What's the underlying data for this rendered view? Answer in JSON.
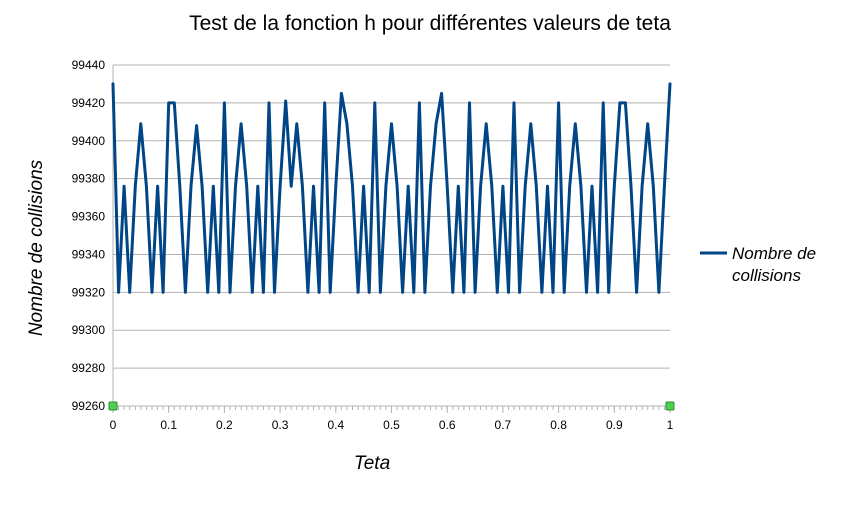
{
  "chart_data": {
    "type": "line",
    "title": "Test de la fonction h pour différentes valeurs de teta",
    "xlabel": "Teta",
    "ylabel": "Nombre de collisions",
    "xlim": [
      0,
      1
    ],
    "ylim": [
      99260,
      99440
    ],
    "x_ticks": [
      "0",
      "0.1",
      "0.2",
      "0.3",
      "0.4",
      "0.5",
      "0.6",
      "0.7",
      "0.8",
      "0.9",
      "1"
    ],
    "y_ticks": [
      "99260",
      "99280",
      "99300",
      "99320",
      "99340",
      "99360",
      "99380",
      "99400",
      "99420",
      "99440"
    ],
    "grid": true,
    "legend_position": "right",
    "colors": {
      "series": "#004586",
      "endpoint_marker": "#4fd04f"
    },
    "series": [
      {
        "name": "Nombre de collisions",
        "x": [
          0,
          0.01,
          0.02,
          0.03,
          0.04,
          0.05,
          0.06,
          0.07,
          0.08,
          0.09,
          0.1,
          0.11,
          0.12,
          0.13,
          0.14,
          0.15,
          0.16,
          0.17,
          0.18,
          0.19,
          0.2,
          0.21,
          0.22,
          0.23,
          0.24,
          0.25,
          0.26,
          0.27,
          0.28,
          0.29,
          0.3,
          0.31,
          0.32,
          0.33,
          0.34,
          0.35,
          0.36,
          0.37,
          0.38,
          0.39,
          0.4,
          0.41,
          0.42,
          0.43,
          0.44,
          0.45,
          0.46,
          0.47,
          0.48,
          0.49,
          0.5,
          0.51,
          0.52,
          0.53,
          0.54,
          0.55,
          0.56,
          0.57,
          0.58,
          0.59,
          0.6,
          0.61,
          0.62,
          0.63,
          0.64,
          0.65,
          0.66,
          0.67,
          0.68,
          0.69,
          0.7,
          0.71,
          0.72,
          0.73,
          0.74,
          0.75,
          0.76,
          0.77,
          0.78,
          0.79,
          0.8,
          0.81,
          0.82,
          0.83,
          0.84,
          0.85,
          0.86,
          0.87,
          0.88,
          0.89,
          0.9,
          0.91,
          0.92,
          0.93,
          0.94,
          0.95,
          0.96,
          0.97,
          0.98,
          0.99,
          1
        ],
        "values": [
          99430,
          99320,
          99376,
          99320,
          99376,
          99409,
          99376,
          99320,
          99376,
          99320,
          99420,
          99420,
          99376,
          99320,
          99376,
          99408,
          99376,
          99320,
          99376,
          99320,
          99420,
          99320,
          99376,
          99409,
          99376,
          99320,
          99376,
          99320,
          99420,
          99320,
          99376,
          99421,
          99376,
          99409,
          99376,
          99320,
          99376,
          99320,
          99420,
          99320,
          99376,
          99425,
          99409,
          99376,
          99320,
          99376,
          99320,
          99420,
          99320,
          99376,
          99409,
          99376,
          99320,
          99376,
          99320,
          99420,
          99320,
          99376,
          99409,
          99425,
          99376,
          99320,
          99376,
          99320,
          99420,
          99320,
          99376,
          99409,
          99376,
          99320,
          99376,
          99320,
          99420,
          99320,
          99376,
          99409,
          99376,
          99320,
          99376,
          99320,
          99420,
          99320,
          99376,
          99409,
          99376,
          99320,
          99376,
          99320,
          99420,
          99320,
          99376,
          99420,
          99420,
          99376,
          99320,
          99376,
          99409,
          99376,
          99320,
          99376,
          99430
        ]
      }
    ]
  }
}
